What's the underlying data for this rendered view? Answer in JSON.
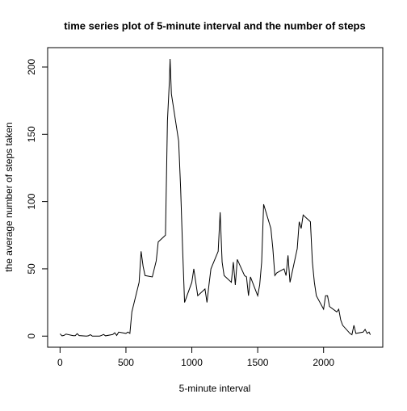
{
  "chart_data": {
    "type": "line",
    "title": "time series plot of 5-minute interval and the number of steps",
    "xlabel": "5-minute interval",
    "ylabel": "the average number of steps taken",
    "x": [
      0,
      15,
      30,
      45,
      100,
      115,
      130,
      145,
      200,
      215,
      230,
      245,
      300,
      315,
      330,
      345,
      400,
      415,
      430,
      445,
      500,
      515,
      530,
      545,
      600,
      615,
      630,
      645,
      700,
      715,
      730,
      745,
      800,
      815,
      830,
      835,
      845,
      900,
      915,
      930,
      945,
      1000,
      1015,
      1030,
      1045,
      1100,
      1115,
      1130,
      1145,
      1200,
      1215,
      1230,
      1245,
      1300,
      1315,
      1330,
      1345,
      1400,
      1415,
      1430,
      1445,
      1500,
      1515,
      1530,
      1545,
      1600,
      1615,
      1630,
      1645,
      1700,
      1715,
      1730,
      1745,
      1800,
      1815,
      1830,
      1845,
      1900,
      1915,
      1930,
      1945,
      2000,
      2015,
      2030,
      2045,
      2100,
      2115,
      2130,
      2145,
      2200,
      2215,
      2230,
      2245,
      2300,
      2315,
      2330,
      2345,
      2355
    ],
    "values": [
      1.7,
      0.2,
      0.5,
      1.5,
      0.3,
      0.3,
      1.8,
      0.4,
      0,
      0.2,
      1.1,
      0,
      0,
      0.5,
      1.2,
      0.2,
      1.2,
      2.5,
      0.5,
      3,
      2,
      3,
      2,
      18,
      40,
      63,
      52,
      45,
      44,
      50,
      56,
      70,
      75,
      160,
      190,
      206,
      180,
      145,
      110,
      65,
      25,
      40,
      50,
      40,
      30,
      35,
      25,
      38,
      50,
      63,
      92,
      55,
      45,
      40,
      55,
      38,
      57,
      45,
      44,
      30,
      44,
      30,
      38,
      55,
      98,
      80,
      65,
      45,
      47,
      50,
      45,
      60,
      40,
      65,
      85,
      80,
      90,
      85,
      55,
      40,
      30,
      20,
      30,
      30,
      22,
      18,
      20,
      12,
      8,
      2,
      1,
      8,
      2,
      3,
      5,
      2,
      3,
      1
    ],
    "color": "#000000",
    "xlim": [
      -94.2,
      2449.2
    ],
    "ylim": [
      -8.25,
      214.4
    ],
    "xticks": [
      0,
      500,
      1000,
      1500,
      2000
    ],
    "yticks": [
      0,
      50,
      100,
      150,
      200
    ],
    "grid": false
  }
}
